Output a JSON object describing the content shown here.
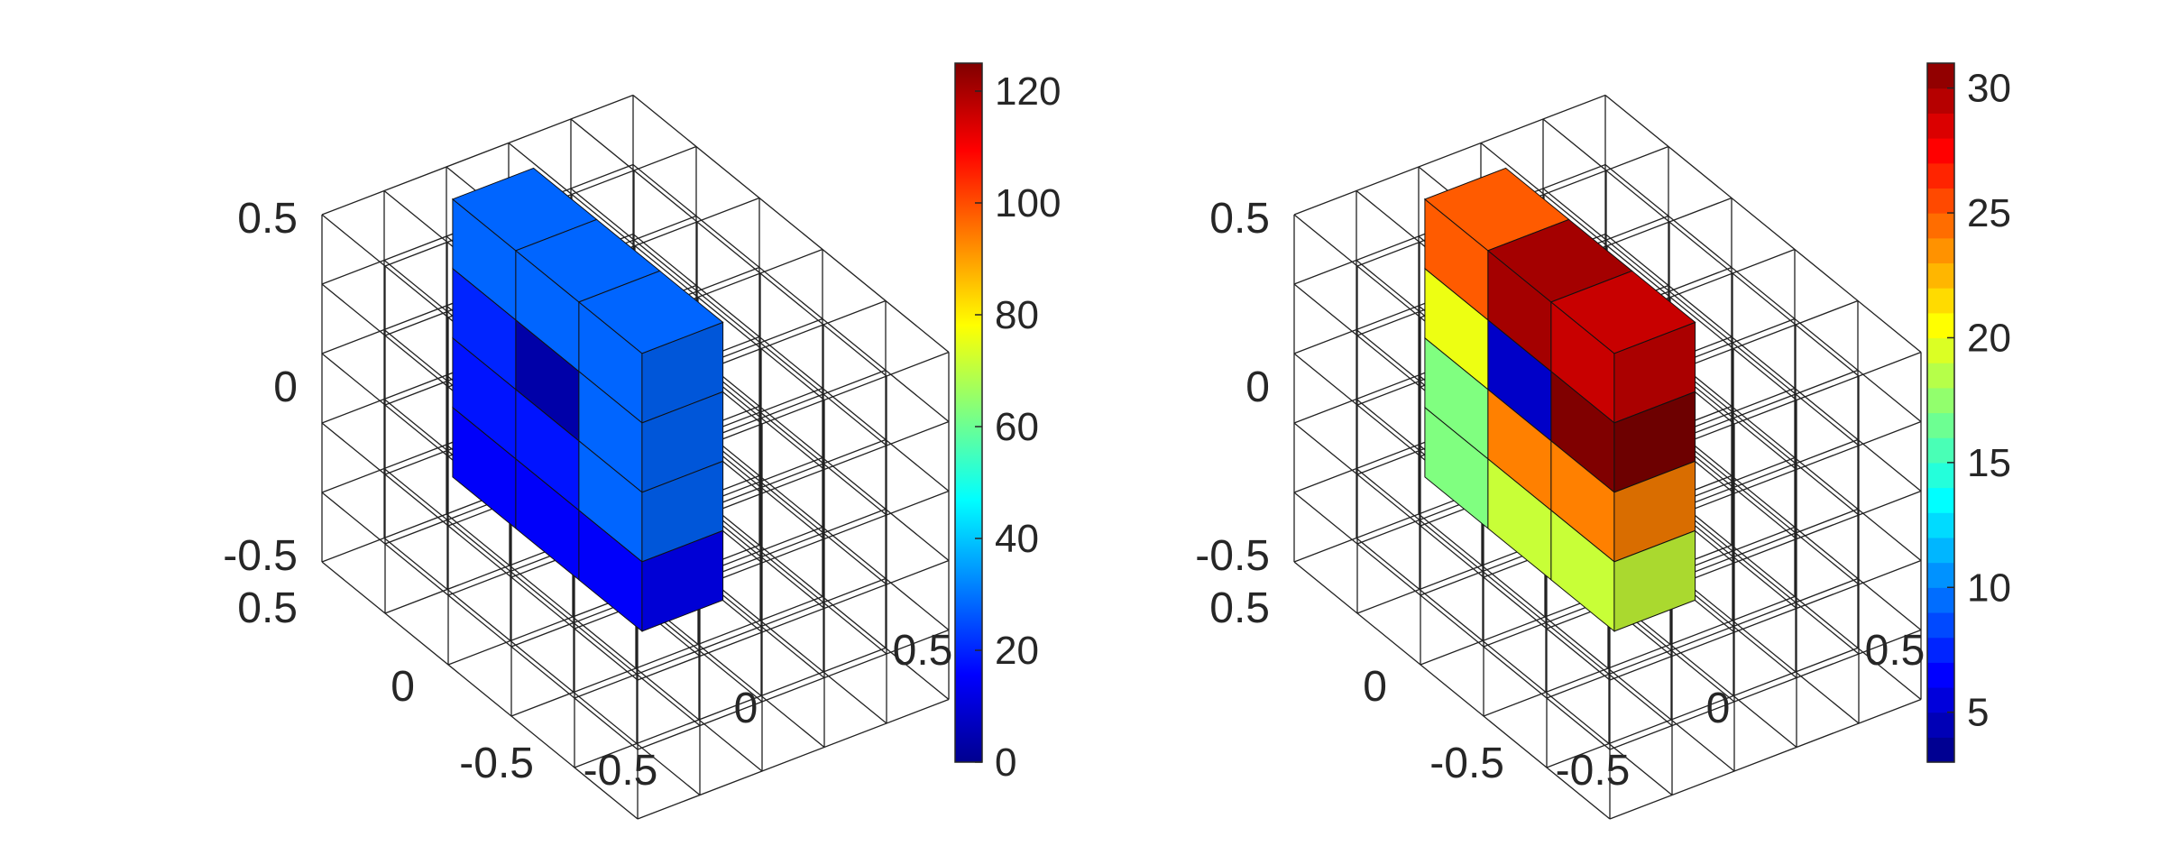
{
  "panels": [
    {
      "colorbar": {
        "colormap": "jet-continuous",
        "clim": [
          0,
          125
        ],
        "ticks": [
          "0",
          "20",
          "40",
          "60",
          "80",
          "100",
          "120"
        ]
      },
      "z_ticks": [
        "-0.5",
        "0",
        "0.5"
      ],
      "y_ticks": [
        "-0.5",
        "0",
        "0.5"
      ],
      "x_ticks": [
        "-0.5",
        "0",
        "0.5"
      ]
    },
    {
      "colorbar": {
        "colormap": "jet-discrete",
        "clim": [
          3,
          31
        ],
        "ticks": [
          "5",
          "10",
          "15",
          "20",
          "25",
          "30"
        ]
      },
      "z_ticks": [
        "-0.5",
        "0",
        "0.5"
      ],
      "y_ticks": [
        "-0.5",
        "0",
        "0.5"
      ],
      "x_ticks": [
        "-0.5",
        "0",
        "0.5"
      ]
    }
  ],
  "chart_data": [
    {
      "type": "heatmap",
      "subtype": "3d-voxel",
      "grid": "5x5x5 wireframe cube, axes from -0.5 to 0.5",
      "colored_slab": {
        "front_face_values": [
          [
            28,
            28,
            28
          ],
          [
            20,
            5,
            28
          ],
          [
            18,
            18,
            28
          ],
          [
            15,
            15,
            15
          ]
        ],
        "top_face_value": 25
      },
      "colorbar_range": [
        0,
        125
      ],
      "colorbar_ticks": [
        0,
        20,
        40,
        60,
        80,
        100,
        120
      ]
    },
    {
      "type": "heatmap",
      "subtype": "3d-voxel",
      "grid": "5x5x5 wireframe cube, axes from -0.5 to 0.5",
      "colored_slab": {
        "front_face_values": [
          [
            25,
            30,
            29
          ],
          [
            20,
            5,
            31
          ],
          [
            17,
            24,
            24
          ],
          [
            17,
            19,
            19
          ]
        ],
        "top_face_value": 25
      },
      "colorbar_range": [
        3,
        31
      ],
      "colorbar_ticks": [
        5,
        10,
        15,
        20,
        25,
        30
      ]
    }
  ]
}
